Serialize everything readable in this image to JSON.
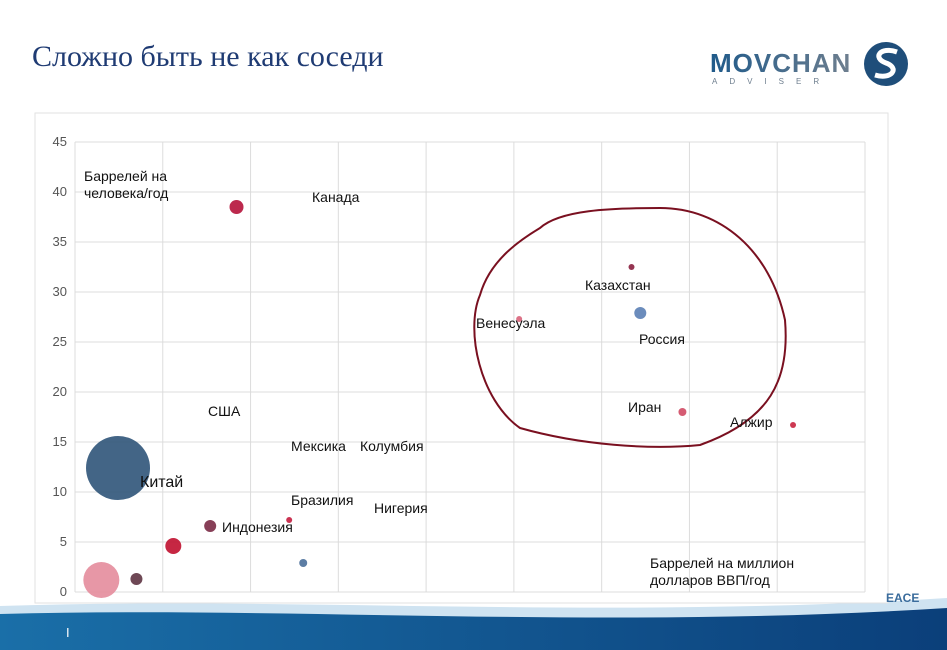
{
  "header": {
    "title": "Сложно быть не как соседи"
  },
  "logo": {
    "name": "MOVCHAN",
    "tagline": "ADVISER"
  },
  "footer": {
    "left": "I",
    "right": "EACE"
  },
  "chart_data": {
    "type": "scatter",
    "x": [
      92,
      317,
      322,
      253,
      346,
      409,
      24.5,
      77,
      122,
      56,
      130,
      35,
      15
    ],
    "values": [
      38.5,
      32.5,
      27.9,
      27.3,
      18,
      16.7,
      12.4,
      6.6,
      7.2,
      4.6,
      2.9,
      1.3,
      1.2
    ],
    "sizes": [
      7,
      3,
      6,
      3,
      4,
      3,
      32,
      6,
      3,
      8,
      4,
      6,
      18
    ],
    "colors": [
      "#b5123a",
      "#8a1f3e",
      "#5b7fb5",
      "#d8637a",
      "#d04a64",
      "#c8243f",
      "#2f5479",
      "#7a2a45",
      "#c41c3e",
      "#c0102f",
      "#4a6f9a",
      "#5e3442",
      "#e48c9c"
    ],
    "annotations": [
      "Канада",
      "Казахстан",
      "Россия",
      "Венесуэла",
      "Иран",
      "Алжир",
      "Китай",
      "Индонезия",
      "Бразилия",
      "США",
      "Мексика",
      "Колумбия",
      "Нигерия"
    ],
    "y_label": "Баррелей на человека/год",
    "x_label": "Баррелей на миллион долларов ВВП/год",
    "xlim": [
      0,
      450
    ],
    "xticks": [
      0,
      50,
      100,
      150,
      200,
      250,
      300,
      350,
      400,
      450
    ],
    "ylim": [
      0,
      45
    ],
    "yticks": [
      0,
      5,
      10,
      15,
      20,
      25,
      30,
      35,
      40,
      45
    ],
    "grid": true
  }
}
